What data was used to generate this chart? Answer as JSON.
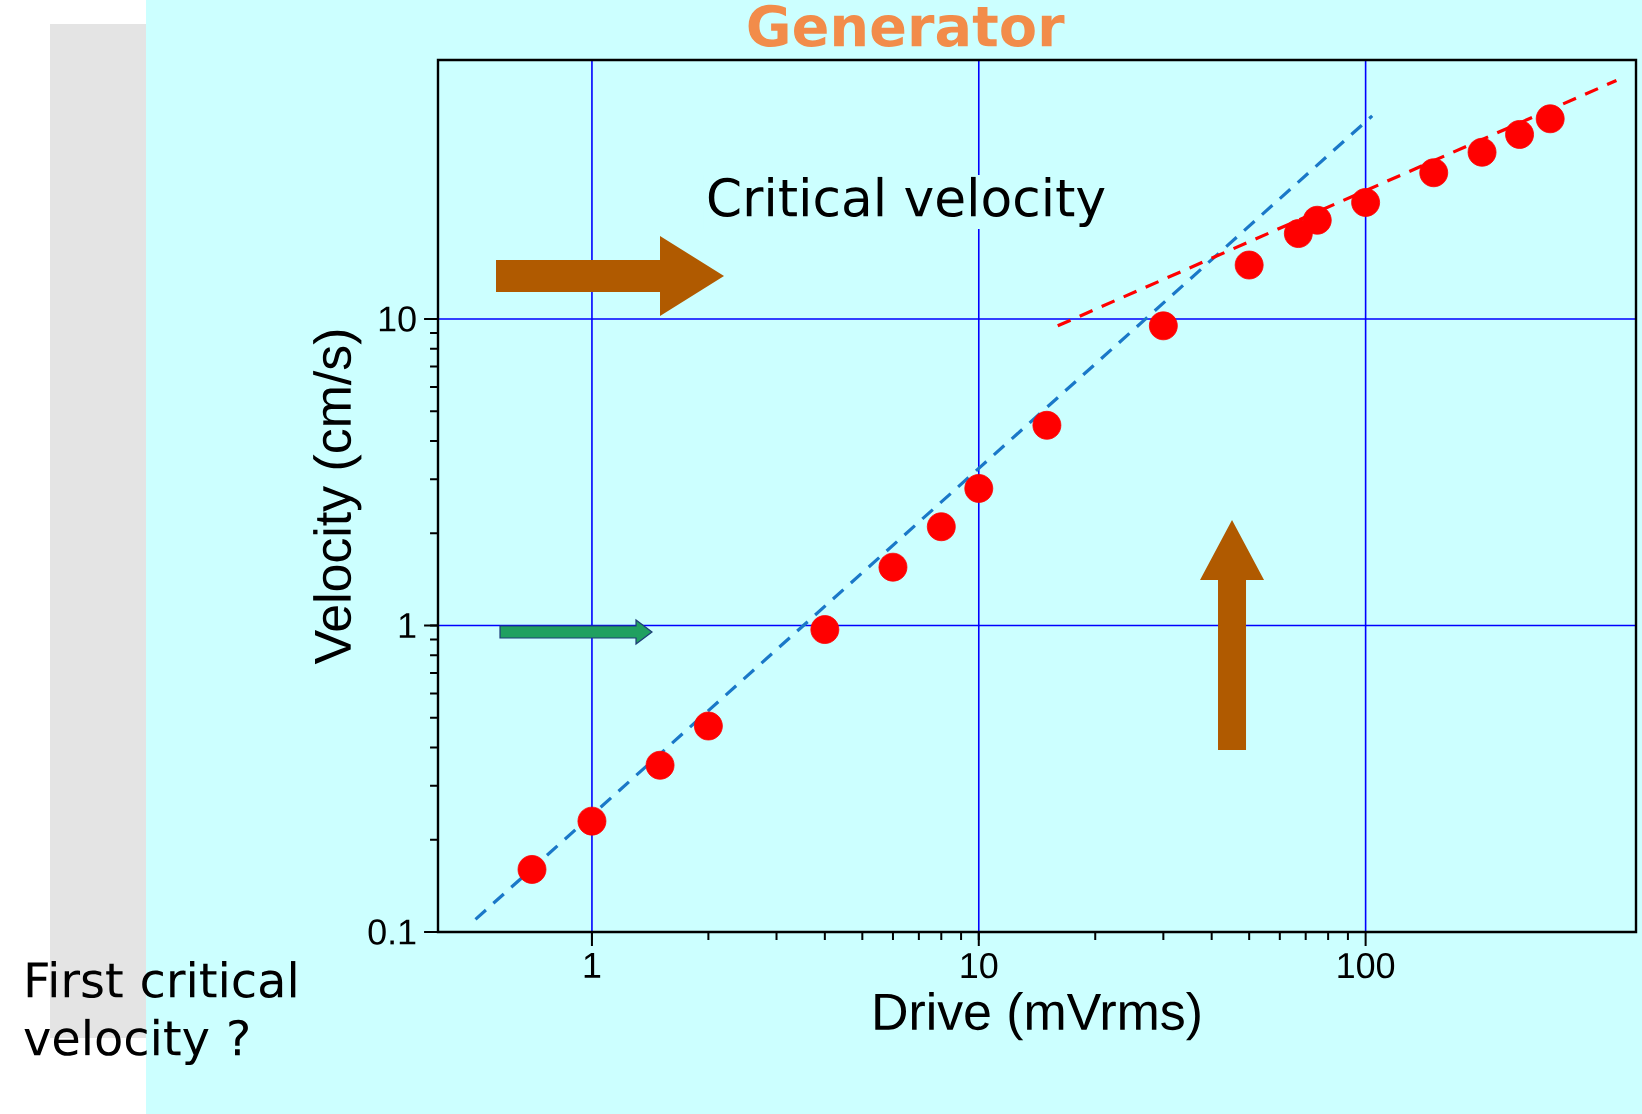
{
  "chart_data": {
    "type": "scatter",
    "title": "Generator",
    "xlabel": "Drive (mVrms)",
    "ylabel": "Velocity (cm/s)",
    "log": "xy",
    "grid": true,
    "xlim": [
      0.4,
      500
    ],
    "ylim": [
      0.1,
      70
    ],
    "xticks": [
      1,
      10,
      100
    ],
    "yticks": [
      0.1,
      1,
      10
    ],
    "annotations": [
      "Critical velocity",
      "First critical velocity ?"
    ],
    "series": [
      {
        "color": "#ff0000",
        "marker": "circle",
        "x": [
          0.7,
          1,
          1.5,
          2,
          4,
          6,
          8,
          10,
          15,
          30,
          50,
          67,
          75,
          100,
          150,
          200,
          250,
          300
        ],
        "values": [
          0.16,
          0.23,
          0.35,
          0.47,
          0.97,
          1.55,
          2.1,
          2.8,
          4.5,
          9.5,
          15,
          19,
          21,
          24,
          30,
          35,
          40,
          45
        ]
      },
      {
        "type": "line",
        "color": "#1a78c8",
        "line_style": "dashed",
        "marker": "none",
        "x": [
          0.5,
          104
        ],
        "values": [
          0.11,
          46
        ]
      },
      {
        "type": "line",
        "color": "#ff0000",
        "line_style": "dashed",
        "marker": "none",
        "x": [
          16,
          445
        ],
        "values": [
          9.5,
          60
        ]
      }
    ]
  }
}
